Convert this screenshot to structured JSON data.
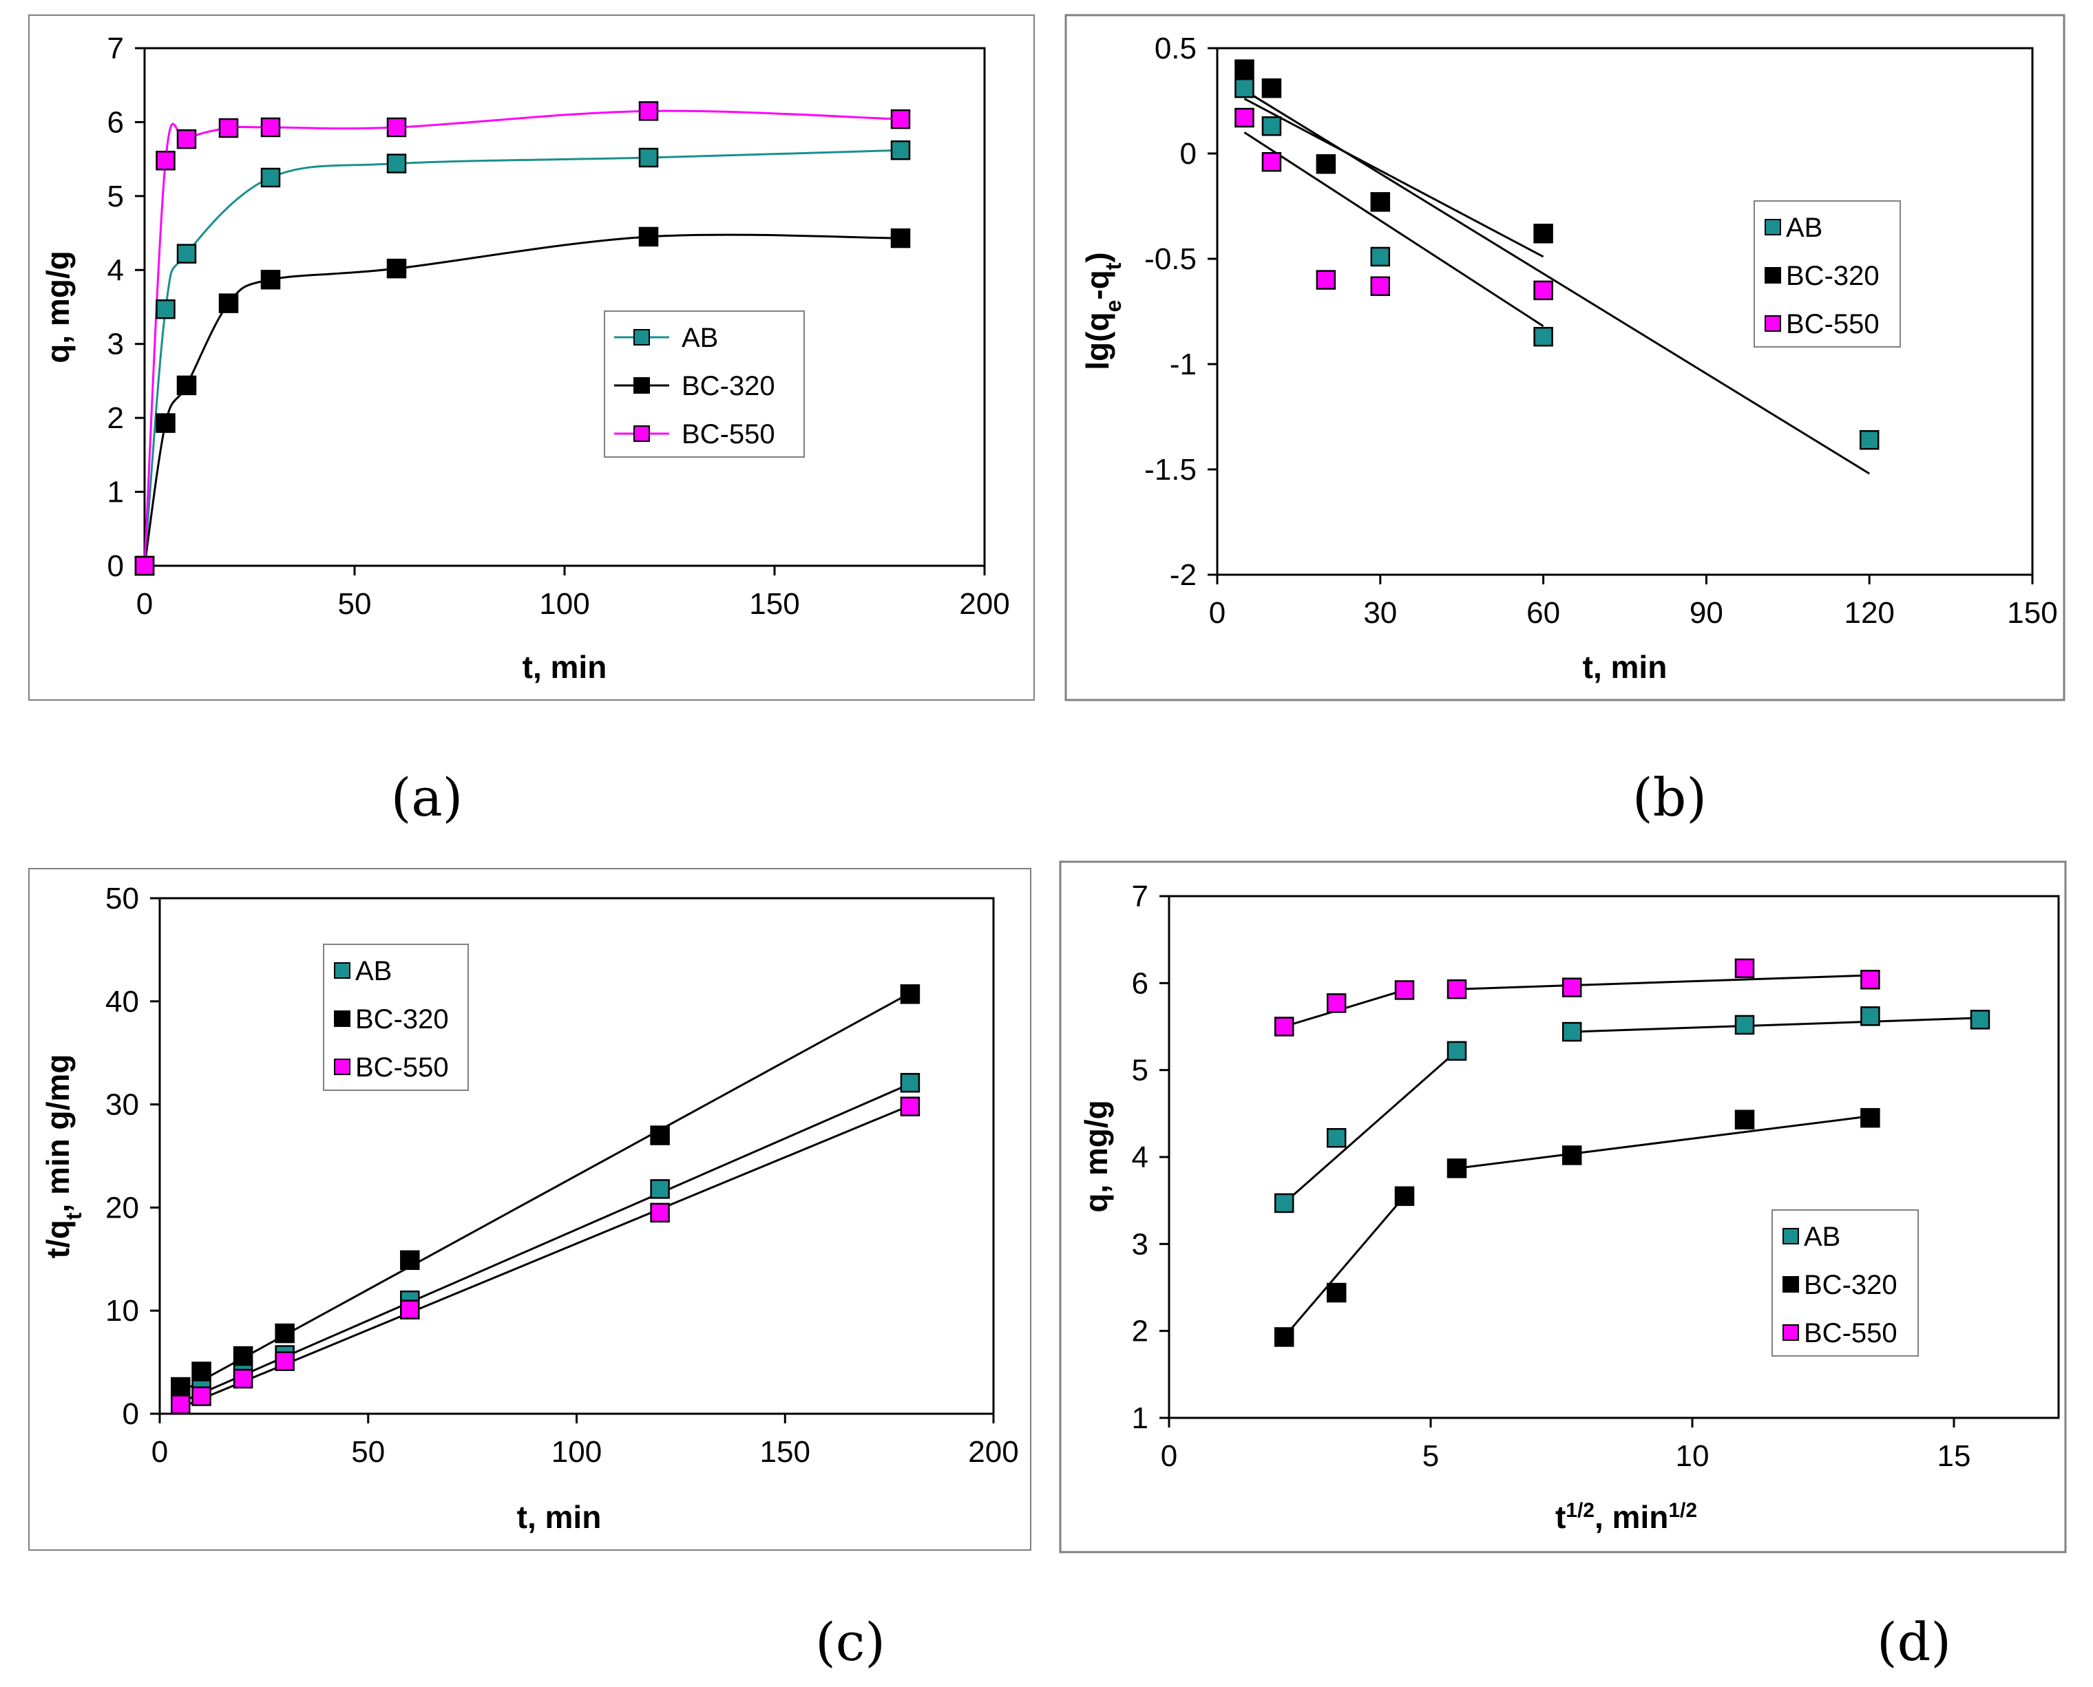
{
  "colors": {
    "AB": "#1a8f8f",
    "BC-320": "#000000",
    "BC-550": "#ff00ff",
    "frame": "#808080"
  },
  "chart_data": [
    {
      "id": "a",
      "panel_label": "(a)",
      "type": "line",
      "xlabel": "t, min",
      "ylabel": "q, mg/g",
      "xlim": [
        0,
        200
      ],
      "ylim": [
        0,
        7
      ],
      "xticks": [
        0,
        50,
        100,
        150,
        200
      ],
      "yticks": [
        0,
        1,
        2,
        3,
        4,
        5,
        6,
        7
      ],
      "xtick_labels": [
        "0",
        "50",
        "100",
        "150",
        "200"
      ],
      "ytick_labels": [
        "0",
        "1",
        "2",
        "3",
        "4",
        "5",
        "6",
        "7"
      ],
      "legend_placement": "center-right",
      "legend_style": "line-marker",
      "series": [
        {
          "name": "AB",
          "points": [
            [
              0,
              0
            ],
            [
              5,
              3.47
            ],
            [
              10,
              4.22
            ],
            [
              30,
              5.25
            ],
            [
              60,
              5.44
            ],
            [
              120,
              5.52
            ],
            [
              180,
              5.62
            ]
          ]
        },
        {
          "name": "BC-320",
          "points": [
            [
              0,
              0
            ],
            [
              5,
              1.93
            ],
            [
              10,
              2.44
            ],
            [
              20,
              3.55
            ],
            [
              30,
              3.87
            ],
            [
              60,
              4.02
            ],
            [
              120,
              4.45
            ],
            [
              180,
              4.43
            ]
          ]
        },
        {
          "name": "BC-550",
          "points": [
            [
              0,
              0
            ],
            [
              5,
              5.48
            ],
            [
              10,
              5.77
            ],
            [
              20,
              5.92
            ],
            [
              30,
              5.93
            ],
            [
              60,
              5.93
            ],
            [
              120,
              6.15
            ],
            [
              180,
              6.04
            ]
          ]
        }
      ]
    },
    {
      "id": "b",
      "panel_label": "(b)",
      "type": "scatter",
      "xlabel": "t, min",
      "ylabel": "lg(qe-qt)",
      "xlim": [
        0,
        150
      ],
      "ylim": [
        -2,
        0.5
      ],
      "xticks": [
        0,
        30,
        60,
        90,
        120,
        150
      ],
      "yticks": [
        -2,
        -1.5,
        -1,
        -0.5,
        0,
        0.5
      ],
      "xtick_labels": [
        "0",
        "30",
        "60",
        "90",
        "120",
        "150"
      ],
      "ytick_labels": [
        "-2",
        "-1.5",
        "-1",
        "-0.5",
        "0",
        "0.5"
      ],
      "legend_placement": "center-right",
      "legend_style": "marker",
      "series": [
        {
          "name": "AB",
          "points": [
            [
              5,
              0.31
            ],
            [
              10,
              0.13
            ],
            [
              30,
              -0.49
            ],
            [
              60,
              -0.87
            ],
            [
              120,
              -1.36
            ]
          ]
        },
        {
          "name": "BC-320",
          "points": [
            [
              5,
              0.4
            ],
            [
              10,
              0.31
            ],
            [
              20,
              -0.05
            ],
            [
              30,
              -0.23
            ],
            [
              60,
              -0.38
            ]
          ]
        },
        {
          "name": "BC-550",
          "points": [
            [
              5,
              0.17
            ],
            [
              10,
              -0.04
            ],
            [
              20,
              -0.6
            ],
            [
              30,
              -0.63
            ],
            [
              60,
              -0.65
            ]
          ]
        }
      ],
      "fit_lines": [
        {
          "from": [
            5,
            0.3
          ],
          "to": [
            120,
            -1.52
          ]
        },
        {
          "from": [
            5,
            0.1
          ],
          "to": [
            60,
            -0.82
          ]
        },
        {
          "from": [
            5,
            0.26
          ],
          "to": [
            60,
            -0.49
          ]
        }
      ]
    },
    {
      "id": "c",
      "panel_label": "(c)",
      "type": "scatter",
      "xlabel": "t, min",
      "ylabel": "t/qt, min g/mg",
      "xlim": [
        0,
        200
      ],
      "ylim": [
        0,
        50
      ],
      "xticks": [
        0,
        50,
        100,
        150,
        200
      ],
      "yticks": [
        0,
        10,
        20,
        30,
        40,
        50
      ],
      "xtick_labels": [
        "0",
        "50",
        "100",
        "150",
        "200"
      ],
      "ytick_labels": [
        "0",
        "10",
        "20",
        "30",
        "40",
        "50"
      ],
      "legend_placement": "top-left",
      "legend_style": "marker",
      "series": [
        {
          "name": "AB",
          "points": [
            [
              5,
              1.4
            ],
            [
              10,
              2.4
            ],
            [
              20,
              4.2
            ],
            [
              30,
              5.7
            ],
            [
              60,
              11.0
            ],
            [
              120,
              21.8
            ],
            [
              180,
              32.1
            ]
          ]
        },
        {
          "name": "BC-320",
          "points": [
            [
              5,
              2.6
            ],
            [
              10,
              4.1
            ],
            [
              20,
              5.6
            ],
            [
              30,
              7.8
            ],
            [
              60,
              14.9
            ],
            [
              120,
              27.0
            ],
            [
              180,
              40.7
            ]
          ]
        },
        {
          "name": "BC-550",
          "points": [
            [
              5,
              0.9
            ],
            [
              10,
              1.7
            ],
            [
              20,
              3.4
            ],
            [
              30,
              5.1
            ],
            [
              60,
              10.1
            ],
            [
              120,
              19.5
            ],
            [
              180,
              29.8
            ]
          ]
        }
      ],
      "fit_lines": [
        {
          "from": [
            5,
            1.1
          ],
          "to": [
            180,
            32.0
          ]
        },
        {
          "from": [
            5,
            2.1
          ],
          "to": [
            180,
            40.8
          ]
        },
        {
          "from": [
            5,
            0.6
          ],
          "to": [
            180,
            29.9
          ]
        }
      ]
    },
    {
      "id": "d",
      "panel_label": "(d)",
      "type": "scatter",
      "xlabel": "t1/2, min1/2",
      "ylabel": "q, mg/g",
      "xlim": [
        0,
        17
      ],
      "ylim": [
        1,
        7
      ],
      "xticks": [
        0,
        5,
        10,
        15
      ],
      "yticks": [
        1,
        2,
        3,
        4,
        5,
        6,
        7
      ],
      "xtick_labels": [
        "0",
        "5",
        "10",
        "15"
      ],
      "ytick_labels": [
        "1",
        "2",
        "3",
        "4",
        "5",
        "6",
        "7"
      ],
      "legend_placement": "bottom-right",
      "legend_style": "marker",
      "series": [
        {
          "name": "AB",
          "points": [
            [
              2.2,
              3.47
            ],
            [
              3.2,
              4.22
            ],
            [
              5.5,
              5.22
            ],
            [
              7.7,
              5.44
            ],
            [
              11.0,
              5.52
            ],
            [
              13.4,
              5.62
            ],
            [
              15.5,
              5.58
            ]
          ]
        },
        {
          "name": "BC-320",
          "points": [
            [
              2.2,
              1.93
            ],
            [
              3.2,
              2.44
            ],
            [
              4.5,
              3.55
            ],
            [
              5.5,
              3.87
            ],
            [
              7.7,
              4.02
            ],
            [
              11.0,
              4.43
            ],
            [
              13.4,
              4.45
            ]
          ]
        },
        {
          "name": "BC-550",
          "points": [
            [
              2.2,
              5.5
            ],
            [
              3.2,
              5.77
            ],
            [
              4.5,
              5.92
            ],
            [
              5.5,
              5.93
            ],
            [
              7.7,
              5.95
            ],
            [
              11.0,
              6.17
            ],
            [
              13.4,
              6.04
            ]
          ]
        }
      ],
      "fit_lines": [
        {
          "from": [
            2.2,
            3.47
          ],
          "to": [
            5.5,
            5.22
          ]
        },
        {
          "from": [
            7.7,
            5.44
          ],
          "to": [
            15.5,
            5.6
          ]
        },
        {
          "from": [
            2.2,
            1.93
          ],
          "to": [
            4.5,
            3.55
          ]
        },
        {
          "from": [
            5.5,
            3.87
          ],
          "to": [
            13.4,
            4.47
          ]
        },
        {
          "from": [
            2.2,
            5.5
          ],
          "to": [
            4.5,
            5.92
          ]
        },
        {
          "from": [
            5.5,
            5.93
          ],
          "to": [
            13.4,
            6.09
          ]
        }
      ]
    }
  ]
}
